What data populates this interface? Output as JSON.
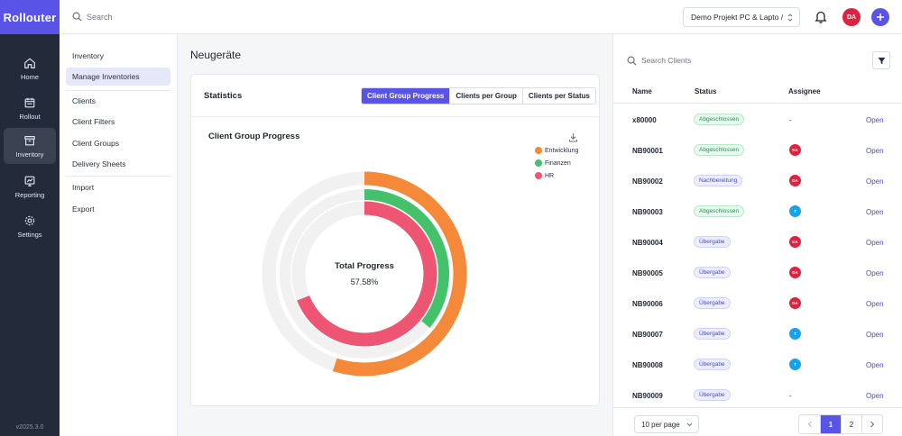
{
  "app": {
    "logo": "Rollouter",
    "version": "v2025.3.0"
  },
  "rail": [
    {
      "label": "Home",
      "icon": "home-icon"
    },
    {
      "label": "Rollout",
      "icon": "calendar-icon"
    },
    {
      "label": "Inventory",
      "icon": "box-icon"
    },
    {
      "label": "Reporting",
      "icon": "chart-icon"
    },
    {
      "label": "Settings",
      "icon": "gear-icon"
    }
  ],
  "topbar": {
    "search_placeholder": "Search",
    "project": "Demo Projekt PC & Lapto",
    "project_suffix": "/",
    "user_initials": "DA"
  },
  "subnav": [
    {
      "label": "Inventory"
    },
    {
      "label": "Manage Inventories"
    },
    {
      "label": "Clients"
    },
    {
      "label": "Client Filters"
    },
    {
      "label": "Client Groups"
    },
    {
      "label": "Delivery Sheets"
    },
    {
      "label": "Import"
    },
    {
      "label": "Export"
    }
  ],
  "page": {
    "title": "Neugeräte",
    "card_title": "Statistics",
    "tabs": [
      "Client Group Progress",
      "Clients per Group",
      "Clients per Status"
    ],
    "active_tab": "Client Group Progress"
  },
  "chart_data": {
    "type": "radial-progress",
    "title": "Client Group Progress",
    "center_label": "Total Progress",
    "center_value": "57.58%",
    "series": [
      {
        "name": "Entwicklung",
        "value": 55,
        "color": "#f5893a"
      },
      {
        "name": "Finanzen",
        "value": 36,
        "color": "#44c26b"
      },
      {
        "name": "HR",
        "value": 69,
        "color": "#ee5572"
      }
    ],
    "track_color": "#f1f1f1"
  },
  "clients": {
    "search_placeholder": "Search Clients",
    "columns": {
      "name": "Name",
      "status": "Status",
      "assignee": "Assignee"
    },
    "rows": [
      {
        "name": "x80000",
        "status": "Abgeschlossen",
        "status_type": "green",
        "assignee": "-",
        "assignee_color": "",
        "action": "Open"
      },
      {
        "name": "NB90001",
        "status": "Abgeschlossen",
        "status_type": "green",
        "assignee": "DA",
        "assignee_color": "#e0213f",
        "action": "Open"
      },
      {
        "name": "NB90002",
        "status": "Nachbereitung",
        "status_type": "blue",
        "assignee": "DA",
        "assignee_color": "#e0213f",
        "action": "Open"
      },
      {
        "name": "NB90003",
        "status": "Abgeschlossen",
        "status_type": "green",
        "assignee": "T",
        "assignee_color": "#1aa1e8",
        "action": "Open"
      },
      {
        "name": "NB90004",
        "status": "Übergabe",
        "status_type": "blue",
        "assignee": "DA",
        "assignee_color": "#e0213f",
        "action": "Open"
      },
      {
        "name": "NB90005",
        "status": "Übergabe",
        "status_type": "blue",
        "assignee": "DA",
        "assignee_color": "#e0213f",
        "action": "Open"
      },
      {
        "name": "NB90006",
        "status": "Übergabe",
        "status_type": "blue",
        "assignee": "DA",
        "assignee_color": "#e0213f",
        "action": "Open"
      },
      {
        "name": "NB90007",
        "status": "Übergabe",
        "status_type": "blue",
        "assignee": "T",
        "assignee_color": "#1aa1e8",
        "action": "Open"
      },
      {
        "name": "NB90008",
        "status": "Übergabe",
        "status_type": "blue",
        "assignee": "T",
        "assignee_color": "#1aa1e8",
        "action": "Open"
      },
      {
        "name": "NB90009",
        "status": "Übergabe",
        "status_type": "blue",
        "assignee": "-",
        "assignee_color": "",
        "action": "Open"
      }
    ],
    "per_page": "10 per page",
    "pages": [
      "1",
      "2"
    ],
    "current_page": "1"
  },
  "colors": {
    "accent": "#5a54e6",
    "rail_bg": "#232b3a"
  }
}
